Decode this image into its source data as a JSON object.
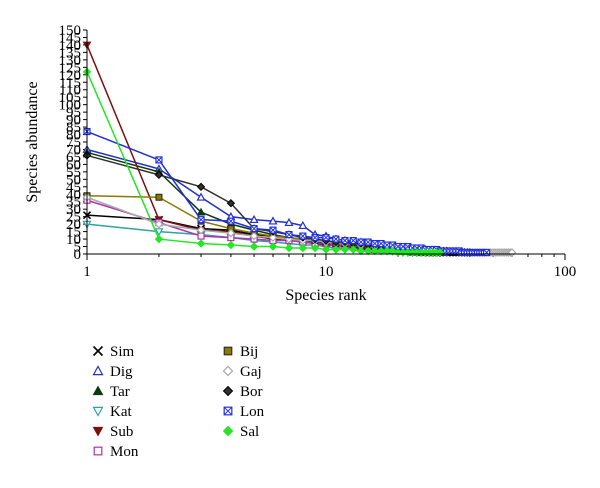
{
  "chart_data": {
    "type": "line",
    "xlabel": "Species rank",
    "ylabel": "Species abundance",
    "xscale": "log",
    "xlim": [
      1,
      100
    ],
    "ylim": [
      0,
      150
    ],
    "x_ticks": [
      "1",
      "10",
      "100"
    ],
    "y_ticks": [
      "0",
      "5",
      "10",
      "15",
      "20",
      "25",
      "30",
      "35",
      "40",
      "45",
      "50",
      "55",
      "60",
      "65",
      "70",
      "75",
      "80",
      "85",
      "90",
      "95",
      "100",
      "105",
      "110",
      "115",
      "120",
      "125",
      "130",
      "135",
      "140",
      "145",
      "150"
    ],
    "legend_position": "bottom-left",
    "series": [
      {
        "name": "Sim",
        "color": "#000000",
        "marker": "x",
        "values": [
          26,
          23,
          17,
          16,
          13,
          12,
          11,
          10,
          9,
          8,
          8,
          7,
          7,
          6,
          6,
          5,
          5,
          4,
          4,
          4,
          3,
          3,
          3,
          2,
          2,
          2,
          1,
          1,
          1,
          1,
          1,
          1,
          1,
          1,
          1
        ]
      },
      {
        "name": "Dig",
        "color": "#1f2fcf",
        "marker": "triangle-open",
        "values": [
          70,
          57,
          38,
          25,
          23,
          22,
          21,
          19,
          13,
          12,
          10,
          9,
          8,
          8,
          7,
          6,
          6,
          5,
          5,
          4,
          4,
          4,
          3,
          3,
          3,
          2,
          2,
          2,
          2,
          2,
          1,
          1,
          1,
          1,
          1,
          1,
          1,
          1,
          1,
          1
        ]
      },
      {
        "name": "Tar",
        "color": "#0d3a0d",
        "marker": "triangle",
        "values": [
          68,
          55,
          28,
          20,
          16,
          13,
          11,
          9,
          8,
          7,
          6,
          5,
          5,
          4,
          4,
          3,
          3,
          3,
          2,
          2,
          2,
          2,
          1,
          1,
          1,
          1,
          1,
          1,
          1,
          1
        ]
      },
      {
        "name": "Kat",
        "color": "#2ea3a3",
        "marker": "triangle-down-open",
        "values": [
          20,
          15,
          13,
          11,
          9,
          8,
          7,
          6,
          6,
          5,
          4,
          4,
          4,
          3,
          3,
          3,
          2,
          2,
          2,
          2,
          1,
          1,
          1,
          1,
          1,
          1,
          1,
          1
        ]
      },
      {
        "name": "Sub",
        "color": "#7a1010",
        "marker": "triangle-down",
        "values": [
          140,
          23,
          16,
          15,
          12,
          10,
          9,
          8,
          7,
          6,
          6,
          5,
          5,
          4,
          4,
          3,
          3,
          3,
          2,
          2,
          2,
          2,
          1,
          1,
          1,
          1,
          1,
          1,
          1,
          1
        ]
      },
      {
        "name": "Mon",
        "color": "#b030b0",
        "marker": "square-open",
        "values": [
          36,
          21,
          12,
          11,
          10,
          9,
          9,
          8,
          7,
          7,
          6,
          6,
          5,
          5,
          4,
          4,
          3,
          3,
          3,
          2,
          2,
          2,
          2,
          1,
          1,
          1,
          1,
          1,
          1,
          1
        ]
      },
      {
        "name": "Bij",
        "color": "#8a7a00",
        "marker": "square",
        "values": [
          39,
          38,
          22,
          17,
          14,
          12,
          11,
          10,
          9,
          8,
          7,
          7,
          6,
          5,
          5,
          4,
          4,
          3,
          3,
          3,
          2,
          2,
          2,
          2,
          1,
          1,
          1,
          1,
          1,
          1
        ]
      },
      {
        "name": "Gaj",
        "color": "#a8a8a8",
        "marker": "diamond-open",
        "values": [
          38,
          20,
          16,
          14,
          12,
          11,
          10,
          9,
          9,
          8,
          8,
          7,
          7,
          6,
          6,
          5,
          5,
          5,
          4,
          4,
          4,
          3,
          3,
          3,
          3,
          3,
          2,
          2,
          2,
          2,
          2,
          2,
          2,
          2,
          2,
          2,
          2,
          1,
          1,
          1,
          1,
          1,
          1,
          1,
          1,
          1,
          1,
          1,
          1,
          1,
          1,
          1,
          1,
          1,
          1,
          1,
          1,
          1,
          1,
          1
        ]
      },
      {
        "name": "Bor",
        "color": "#303030",
        "marker": "diamond",
        "values": [
          66,
          53,
          45,
          34,
          17,
          15,
          13,
          11,
          10,
          9,
          8,
          8,
          7,
          7,
          6,
          6,
          5,
          5,
          5,
          4,
          4,
          4,
          3,
          3,
          3,
          3,
          2,
          2,
          2,
          2,
          2,
          2,
          1,
          1,
          1,
          1,
          1,
          1,
          1,
          1
        ]
      },
      {
        "name": "Lon",
        "color": "#1f2fe0",
        "marker": "square-x",
        "values": [
          82,
          63,
          23,
          22,
          17,
          16,
          13,
          12,
          11,
          11,
          10,
          9,
          9,
          8,
          8,
          7,
          7,
          6,
          6,
          5,
          5,
          5,
          4,
          4,
          4,
          3,
          3,
          3,
          3,
          2,
          2,
          2,
          2,
          2,
          2,
          2,
          1,
          1,
          1,
          1,
          1,
          1,
          1,
          1,
          1,
          1,
          1
        ]
      },
      {
        "name": "Sal",
        "color": "#22e822",
        "marker": "diamond-filled",
        "values": [
          122,
          10,
          7,
          6,
          5,
          5,
          4,
          4,
          4,
          3,
          3,
          3,
          3,
          2,
          2,
          2,
          2,
          2,
          2,
          1,
          1,
          1,
          1,
          1,
          1,
          1,
          1,
          1,
          1,
          1
        ]
      }
    ]
  }
}
